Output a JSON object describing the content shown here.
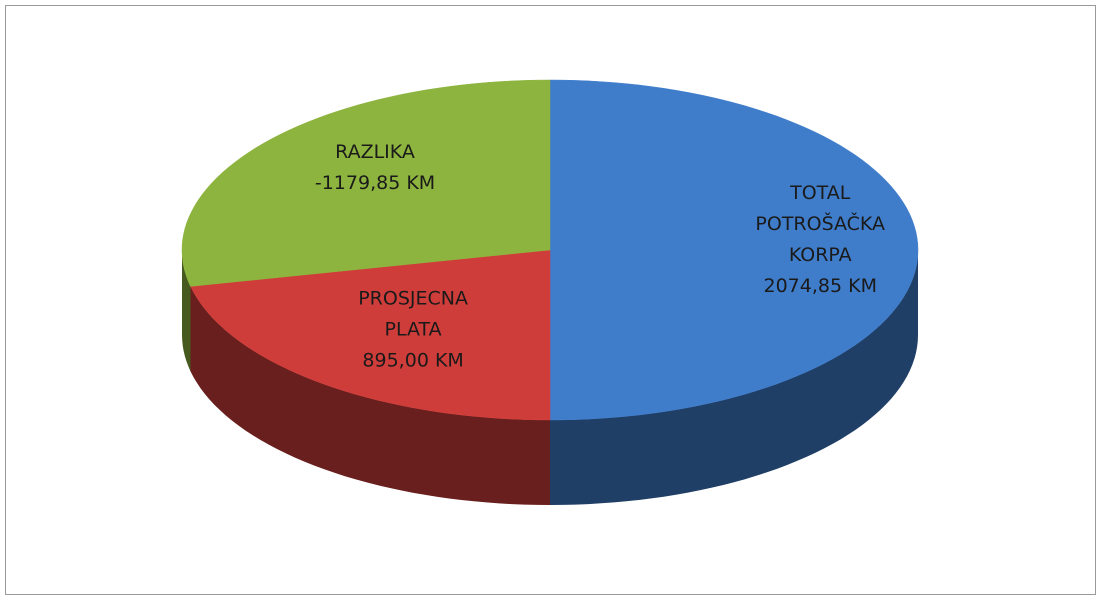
{
  "chart_data": {
    "type": "pie",
    "categories": [
      "TOTAL POTROŠAČKA KORPA",
      "PROSJECNA PLATA",
      "RAZLIKA"
    ],
    "values": [
      2074.85,
      895,
      -1179.85
    ],
    "value_labels": [
      "2074,85 KM",
      "895,00 KM",
      "-1179,85 KM"
    ],
    "colors": [
      "#3f7dcb",
      "#cf3d3a",
      "#8db43e"
    ]
  }
}
